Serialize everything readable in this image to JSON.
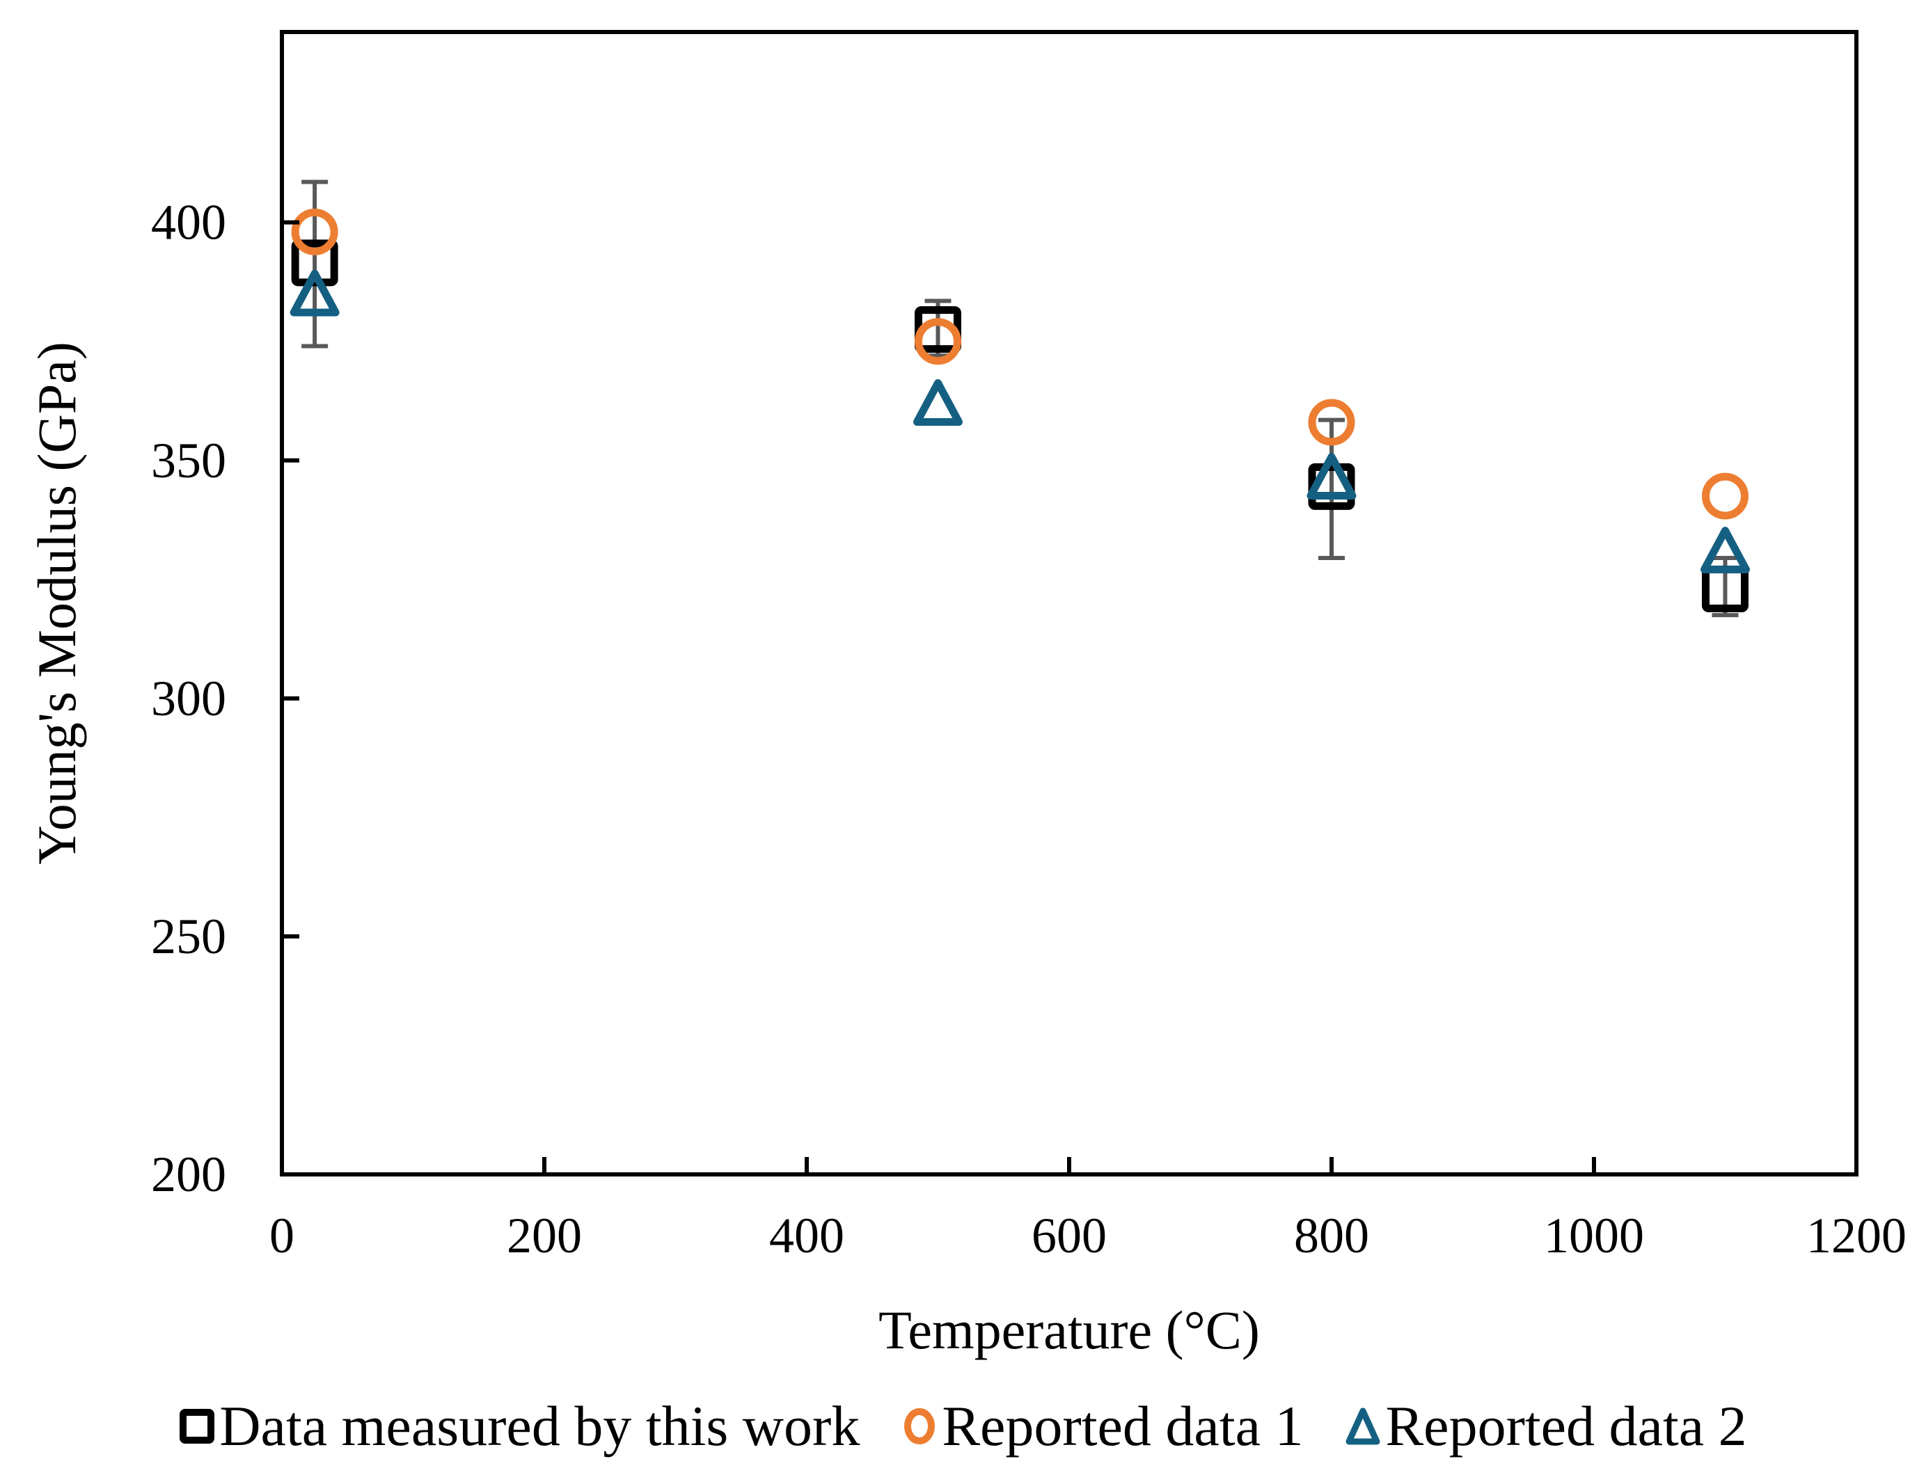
{
  "chart_data": {
    "type": "scatter",
    "title": "",
    "xlabel": "Temperature (°C)",
    "ylabel": "Young's Modulus (GPa)",
    "xlim": [
      0,
      1200
    ],
    "ylim": [
      200,
      440
    ],
    "xticks": [
      0,
      200,
      400,
      600,
      800,
      1000,
      1200
    ],
    "yticks": [
      200,
      250,
      300,
      350,
      400
    ],
    "grid": false,
    "legend_position": "bottom",
    "series": [
      {
        "name": "Data measured by this work",
        "marker": "square",
        "color": "#000000",
        "x": [
          25,
          500,
          800,
          1100
        ],
        "y": [
          391.5,
          377.5,
          344.5,
          323
        ],
        "error_low": [
          374,
          372,
          329.5,
          317.5
        ],
        "error_high": [
          408.5,
          383.5,
          358.5,
          329.5
        ],
        "error_color": "#595959"
      },
      {
        "name": "Reported data 1",
        "marker": "circle",
        "color": "#ED7D31",
        "x": [
          25,
          500,
          800,
          1100
        ],
        "y": [
          398,
          375,
          358,
          342.5
        ]
      },
      {
        "name": "Reported data 2",
        "marker": "triangle",
        "color": "#156082",
        "x": [
          25,
          500,
          800,
          1100
        ],
        "y": [
          384,
          361,
          345.5,
          330
        ]
      }
    ]
  },
  "legend": {
    "items": [
      {
        "label": "Data measured by this work",
        "marker": "square-icon",
        "color": "#000000"
      },
      {
        "label": "Reported data 1",
        "marker": "circle-icon",
        "color": "#ED7D31"
      },
      {
        "label": "Reported data 2",
        "marker": "triangle-icon",
        "color": "#156082"
      }
    ]
  }
}
